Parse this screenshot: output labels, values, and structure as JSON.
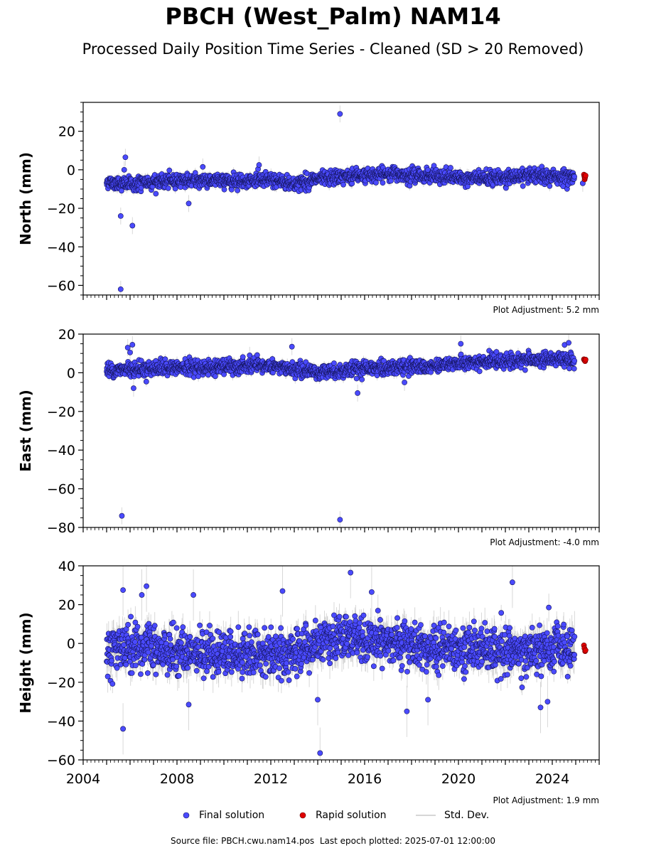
{
  "title": "PBCH (West_Palm) NAM14",
  "subtitle": "Processed Daily Position Time Series - Cleaned (SD > 20 Removed)",
  "chart_data": [
    {
      "type": "scatter",
      "ylabel": "North (mm)",
      "xlim": [
        2004,
        2026
      ],
      "ylim": [
        -65,
        35
      ],
      "yticks": [
        20,
        0,
        -20,
        -40,
        -60
      ],
      "xticks": [
        2004,
        2008,
        2012,
        2016,
        2020,
        2024
      ],
      "show_xtick_labels": false,
      "adjustment": "Plot Adjustment: 5.2 mm",
      "trend": [
        [
          2005.0,
          -6.5
        ],
        [
          2006.0,
          -7.5
        ],
        [
          2008.0,
          -5.5
        ],
        [
          2010.0,
          -5.5
        ],
        [
          2012.0,
          -5.5
        ],
        [
          2013.0,
          -7.5
        ],
        [
          2014.0,
          -5.0
        ],
        [
          2015.5,
          -3.0
        ],
        [
          2017.5,
          -2.0
        ],
        [
          2019.0,
          -3.5
        ],
        [
          2021.0,
          -4.5
        ],
        [
          2023.0,
          -3.5
        ],
        [
          2024.9,
          -3.5
        ]
      ],
      "spread": 2.3,
      "error_bar_typical": 2.0,
      "outliers": [
        [
          2005.6,
          -24
        ],
        [
          2005.6,
          -62
        ],
        [
          2005.8,
          6.5
        ],
        [
          2005.75,
          0
        ],
        [
          2006.1,
          -29
        ],
        [
          2008.5,
          -17.5
        ],
        [
          2009.1,
          1.5
        ],
        [
          2011.5,
          2.5
        ],
        [
          2014.95,
          29
        ],
        [
          2025.3,
          -7
        ]
      ],
      "rapid": [
        [
          2025.35,
          -2.5
        ],
        [
          2025.37,
          -3.5
        ],
        [
          2025.38,
          -5
        ],
        [
          2025.4,
          -4
        ],
        [
          2025.42,
          -3
        ]
      ]
    },
    {
      "type": "scatter",
      "ylabel": "East (mm)",
      "xlim": [
        2004,
        2026
      ],
      "ylim": [
        -80,
        20
      ],
      "yticks": [
        20,
        0,
        -20,
        -40,
        -60,
        -80
      ],
      "xticks": [
        2004,
        2008,
        2012,
        2016,
        2020,
        2024
      ],
      "show_xtick_labels": false,
      "adjustment": "Plot Adjustment: -4.0 mm",
      "trend": [
        [
          2005.0,
          1.0
        ],
        [
          2006.0,
          2.0
        ],
        [
          2008.0,
          2.5
        ],
        [
          2010.0,
          3.0
        ],
        [
          2012.0,
          3.5
        ],
        [
          2013.0,
          1.5
        ],
        [
          2014.0,
          0.5
        ],
        [
          2015.5,
          1.5
        ],
        [
          2017.5,
          3.0
        ],
        [
          2019.0,
          4.0
        ],
        [
          2021.0,
          5.5
        ],
        [
          2023.0,
          6.5
        ],
        [
          2024.9,
          7.0
        ]
      ],
      "spread": 2.3,
      "error_bar_typical": 2.0,
      "outliers": [
        [
          2005.65,
          -74
        ],
        [
          2005.9,
          13
        ],
        [
          2006.1,
          14.5
        ],
        [
          2006.15,
          -8
        ],
        [
          2006.0,
          10.5
        ],
        [
          2011.1,
          9
        ],
        [
          2012.9,
          13.5
        ],
        [
          2014.95,
          -76
        ],
        [
          2015.7,
          -10.5
        ],
        [
          2017.7,
          -5
        ],
        [
          2020.1,
          15
        ],
        [
          2024.7,
          15.5
        ]
      ],
      "rapid": [
        [
          2025.35,
          7
        ],
        [
          2025.37,
          6.5
        ],
        [
          2025.4,
          6
        ],
        [
          2025.42,
          6.8
        ]
      ]
    },
    {
      "type": "scatter",
      "ylabel": "Height (mm)",
      "xlim": [
        2004,
        2026
      ],
      "ylim": [
        -60,
        40
      ],
      "yticks": [
        40,
        20,
        0,
        -20,
        -40,
        -60
      ],
      "xticks": [
        2004,
        2008,
        2012,
        2016,
        2020,
        2024
      ],
      "xtick_labels": [
        "2004",
        "2008",
        "2012",
        "2016",
        "2020",
        "2024"
      ],
      "show_xtick_labels": true,
      "adjustment": "Plot Adjustment: 1.9 mm",
      "trend": [
        [
          2005.0,
          -3.0
        ],
        [
          2006.0,
          -2.0
        ],
        [
          2008.0,
          -4.0
        ],
        [
          2010.0,
          -5.0
        ],
        [
          2012.0,
          -5.5
        ],
        [
          2013.0,
          -6.0
        ],
        [
          2014.0,
          0.0
        ],
        [
          2015.5,
          3.0
        ],
        [
          2017.0,
          2.0
        ],
        [
          2018.5,
          -2.0
        ],
        [
          2020.0,
          -2.0
        ],
        [
          2022.0,
          -4.0
        ],
        [
          2024.9,
          -2.5
        ]
      ],
      "spread": 7.5,
      "error_bar_typical": 6.0,
      "outliers": [
        [
          2005.7,
          -44
        ],
        [
          2005.7,
          27.5
        ],
        [
          2006.5,
          25
        ],
        [
          2006.7,
          29.5
        ],
        [
          2008.7,
          25
        ],
        [
          2008.5,
          -31.5
        ],
        [
          2012.5,
          27
        ],
        [
          2014.1,
          -56.5
        ],
        [
          2014.0,
          -29
        ],
        [
          2015.4,
          36.5
        ],
        [
          2016.3,
          26.5
        ],
        [
          2017.8,
          -35
        ],
        [
          2018.7,
          -29
        ],
        [
          2022.3,
          31.5
        ],
        [
          2023.5,
          -33
        ],
        [
          2023.8,
          -30
        ],
        [
          2024.95,
          3.5
        ]
      ],
      "rapid": [
        [
          2025.35,
          -1
        ],
        [
          2025.37,
          -2.5
        ],
        [
          2025.4,
          -4
        ],
        [
          2025.42,
          -3.5
        ]
      ]
    }
  ],
  "legend": {
    "final": "Final solution",
    "rapid": "Rapid solution",
    "stddev": "Std. Dev."
  },
  "colors": {
    "final_fill": "#4a4aff",
    "final_edge": "#14145a",
    "rapid_fill": "#e00000",
    "error_bar": "#b8b8b8"
  },
  "footer": "Source file: PBCH.cwu.nam14.pos  Last epoch plotted: 2025-07-01 12:00:00"
}
